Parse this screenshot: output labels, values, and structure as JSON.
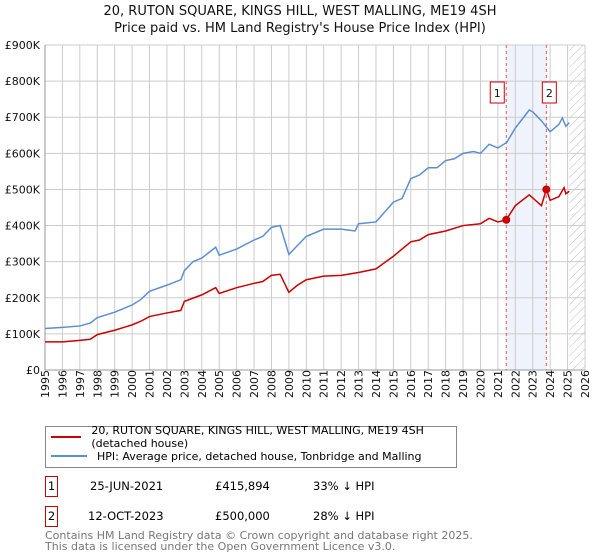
{
  "chart_data": {
    "type": "line",
    "title": "20, RUTON SQUARE, KINGS HILL, WEST MALLING, ME19 4SH",
    "subtitle": "Price paid vs. HM Land Registry's House Price Index (HPI)",
    "xlim": [
      1995,
      2026
    ],
    "ylim": [
      0,
      900000
    ],
    "x_ticks": [
      "1995",
      "1996",
      "1997",
      "1998",
      "1999",
      "2000",
      "2001",
      "2002",
      "2003",
      "2004",
      "2005",
      "2006",
      "2007",
      "2008",
      "2009",
      "2010",
      "2011",
      "2012",
      "2013",
      "2014",
      "2015",
      "2016",
      "2017",
      "2018",
      "2019",
      "2020",
      "2021",
      "2022",
      "2023",
      "2024",
      "2025",
      "2026"
    ],
    "y_ticks": [
      {
        "v": 0,
        "label": "£0"
      },
      {
        "v": 100000,
        "label": "£100K"
      },
      {
        "v": 200000,
        "label": "£200K"
      },
      {
        "v": 300000,
        "label": "£300K"
      },
      {
        "v": 400000,
        "label": "£400K"
      },
      {
        "v": 500000,
        "label": "£500K"
      },
      {
        "v": 600000,
        "label": "£600K"
      },
      {
        "v": 700000,
        "label": "£700K"
      },
      {
        "v": 800000,
        "label": "£800K"
      },
      {
        "v": 900000,
        "label": "£900K"
      }
    ],
    "grid": true,
    "shaded_range": [
      2021.48,
      2023.78
    ],
    "forecast_hatch_from": 2025.1,
    "series": [
      {
        "name": "20, RUTON SQUARE, KINGS HILL, WEST MALLING, ME19 4SH (detached house)",
        "color": "#cc0000",
        "points": [
          [
            1995,
            78000
          ],
          [
            1996,
            78000
          ],
          [
            1997,
            82000
          ],
          [
            1997.6,
            85000
          ],
          [
            1998,
            98000
          ],
          [
            1999,
            110000
          ],
          [
            2000,
            125000
          ],
          [
            2000.5,
            135000
          ],
          [
            2001,
            148000
          ],
          [
            2002,
            158000
          ],
          [
            2002.8,
            165000
          ],
          [
            2003,
            190000
          ],
          [
            2004,
            208000
          ],
          [
            2004.8,
            228000
          ],
          [
            2005,
            212000
          ],
          [
            2006,
            228000
          ],
          [
            2007,
            240000
          ],
          [
            2007.5,
            245000
          ],
          [
            2008,
            262000
          ],
          [
            2008.5,
            265000
          ],
          [
            2009,
            215000
          ],
          [
            2009.5,
            235000
          ],
          [
            2010,
            250000
          ],
          [
            2011,
            260000
          ],
          [
            2012,
            262000
          ],
          [
            2013,
            270000
          ],
          [
            2014,
            280000
          ],
          [
            2015,
            315000
          ],
          [
            2016,
            355000
          ],
          [
            2016.5,
            360000
          ],
          [
            2017,
            375000
          ],
          [
            2018,
            385000
          ],
          [
            2019,
            400000
          ],
          [
            2020,
            405000
          ],
          [
            2020.5,
            420000
          ],
          [
            2021,
            410000
          ],
          [
            2021.48,
            415894
          ],
          [
            2022,
            455000
          ],
          [
            2022.8,
            485000
          ],
          [
            2023.5,
            455000
          ],
          [
            2023.78,
            500000
          ],
          [
            2024,
            470000
          ],
          [
            2024.5,
            480000
          ],
          [
            2024.8,
            505000
          ],
          [
            2024.9,
            488000
          ],
          [
            2025.1,
            495000
          ]
        ]
      },
      {
        "name": "HPI: Average price, detached house, Tonbridge and Malling",
        "color": "#5b8fd4",
        "points": [
          [
            1995,
            115000
          ],
          [
            1996,
            118000
          ],
          [
            1997,
            122000
          ],
          [
            1997.6,
            130000
          ],
          [
            1998,
            145000
          ],
          [
            1999,
            160000
          ],
          [
            2000,
            180000
          ],
          [
            2000.5,
            195000
          ],
          [
            2001,
            218000
          ],
          [
            2002,
            235000
          ],
          [
            2002.8,
            250000
          ],
          [
            2003,
            275000
          ],
          [
            2003.5,
            300000
          ],
          [
            2004,
            310000
          ],
          [
            2004.8,
            340000
          ],
          [
            2005,
            318000
          ],
          [
            2006,
            335000
          ],
          [
            2007,
            360000
          ],
          [
            2007.5,
            370000
          ],
          [
            2008,
            395000
          ],
          [
            2008.5,
            400000
          ],
          [
            2009,
            320000
          ],
          [
            2009.5,
            345000
          ],
          [
            2010,
            370000
          ],
          [
            2011,
            390000
          ],
          [
            2012,
            390000
          ],
          [
            2012.8,
            385000
          ],
          [
            2013,
            405000
          ],
          [
            2014,
            410000
          ],
          [
            2015,
            465000
          ],
          [
            2015.5,
            475000
          ],
          [
            2016,
            530000
          ],
          [
            2016.5,
            540000
          ],
          [
            2017,
            560000
          ],
          [
            2017.5,
            560000
          ],
          [
            2018,
            580000
          ],
          [
            2018.5,
            585000
          ],
          [
            2019,
            600000
          ],
          [
            2019.6,
            605000
          ],
          [
            2020,
            600000
          ],
          [
            2020.5,
            625000
          ],
          [
            2021,
            615000
          ],
          [
            2021.5,
            630000
          ],
          [
            2022,
            670000
          ],
          [
            2022.8,
            720000
          ],
          [
            2023,
            715000
          ],
          [
            2023.5,
            690000
          ],
          [
            2024,
            660000
          ],
          [
            2024.5,
            680000
          ],
          [
            2024.7,
            698000
          ],
          [
            2024.9,
            675000
          ],
          [
            2025.1,
            685000
          ]
        ]
      }
    ],
    "annotations": [
      {
        "label": "1",
        "x": 2021.48,
        "y": 415894
      },
      {
        "label": "2",
        "x": 2023.78,
        "y": 500000
      }
    ]
  },
  "legend": {
    "red": "20, RUTON SQUARE, KINGS HILL, WEST MALLING, ME19 4SH (detached house)",
    "blue": "HPI: Average price, detached house, Tonbridge and Malling"
  },
  "transactions": [
    {
      "num": "1",
      "date": "25-JUN-2021",
      "price": "£415,894",
      "hpi": "33% ↓ HPI"
    },
    {
      "num": "2",
      "date": "12-OCT-2023",
      "price": "£500,000",
      "hpi": "28% ↓ HPI"
    }
  ],
  "footer": {
    "line1": "Contains HM Land Registry data © Crown copyright and database right 2025.",
    "line2": "This data is licensed under the Open Government Licence v3.0."
  }
}
